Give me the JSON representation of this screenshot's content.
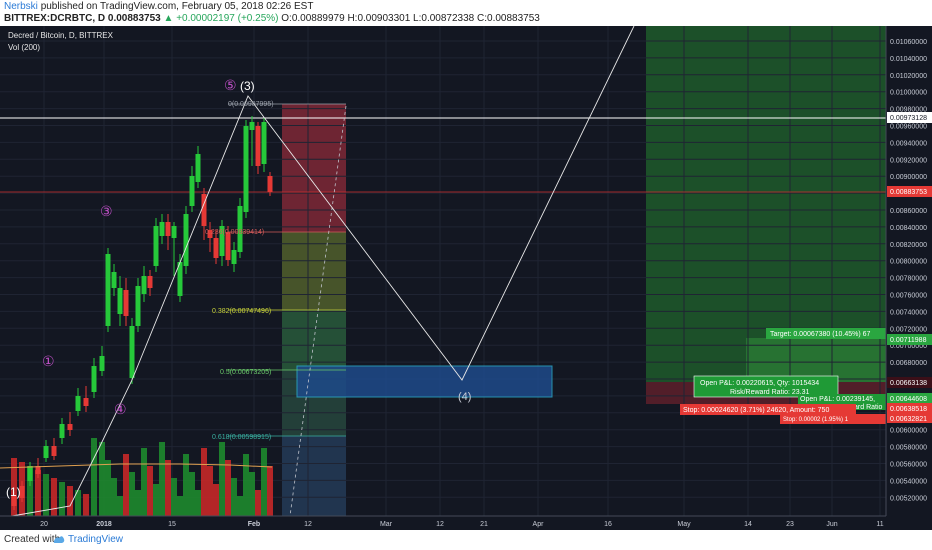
{
  "header": {
    "author": "Nerbski",
    "published": "published on TradingView.com, February 05, 2018 02:26 EST",
    "ticker_line_a": "BITTREX:DCRBTC, D",
    "ticker_line_b": "0.00883753",
    "change": "▲ +0.00002197 (+0.25%)",
    "ohlc": "O:0.00889979 H:0.00903301 L:0.00872338 C:0.00883753"
  },
  "chart": {
    "symbol_title": "Decred / Bitcoin, D, BITTREX",
    "volume_label": "Vol (200)",
    "price_labels": [
      "0.01060000",
      "0.01040000",
      "0.01020000",
      "0.01000000",
      "0.00980000",
      "0.00960000",
      "0.00940000",
      "0.00920000",
      "0.00900000",
      "0.00880000",
      "0.00860000",
      "0.00840000",
      "0.00820000",
      "0.00800000",
      "0.00780000",
      "0.00760000",
      "0.00740000",
      "0.00720000",
      "0.00700000",
      "0.00680000",
      "0.00660000",
      "0.00640000",
      "0.00620000",
      "0.00600000",
      "0.00580000",
      "0.00560000",
      "0.00540000",
      "0.00520000"
    ],
    "time_labels": [
      "20",
      "2018",
      "15",
      "Feb",
      "12",
      "Mar",
      "12",
      "21",
      "Apr",
      "16",
      "May",
      "14",
      "23",
      "Jun",
      "11"
    ],
    "tags": {
      "white": "0.00973128",
      "current": "0.00883753",
      "green1": "0.00711988",
      "maroon1": "0.00663138",
      "green2": "0.00644608",
      "red1": "0.00638518",
      "red2": "0.00632821"
    },
    "fib": {
      "f0": "0(0.00987995)",
      "f236": "0.236(0.00839414)",
      "f382": "0.382(0.00747496)",
      "f5": "0.5(0.00673205)",
      "f618": "0.618(0.00598915)"
    },
    "waves": {
      "w1": "①",
      "w3": "③",
      "w4": "④",
      "w5": "⑤",
      "big1": "(1)",
      "big3": "(3)",
      "big4": "(4)"
    },
    "position": {
      "target": "Target: 0.00067380 (10.45%) 67",
      "pnl": "Open P&L: 0.00220615, Qty: 1015434",
      "rr": "Risk/Reward Ratio: 23.31",
      "pnl2": "Open P&L: 0.00239145,",
      "rr2": "Reward Ratio",
      "stop": "Stop: 0.00024620 (3.71%) 24620, Amount: 750",
      "stop2": "Stop: 0.00002 (1.95%) 1"
    }
  },
  "footer": {
    "created_with": "Created with",
    "brand": "TradingView"
  }
}
